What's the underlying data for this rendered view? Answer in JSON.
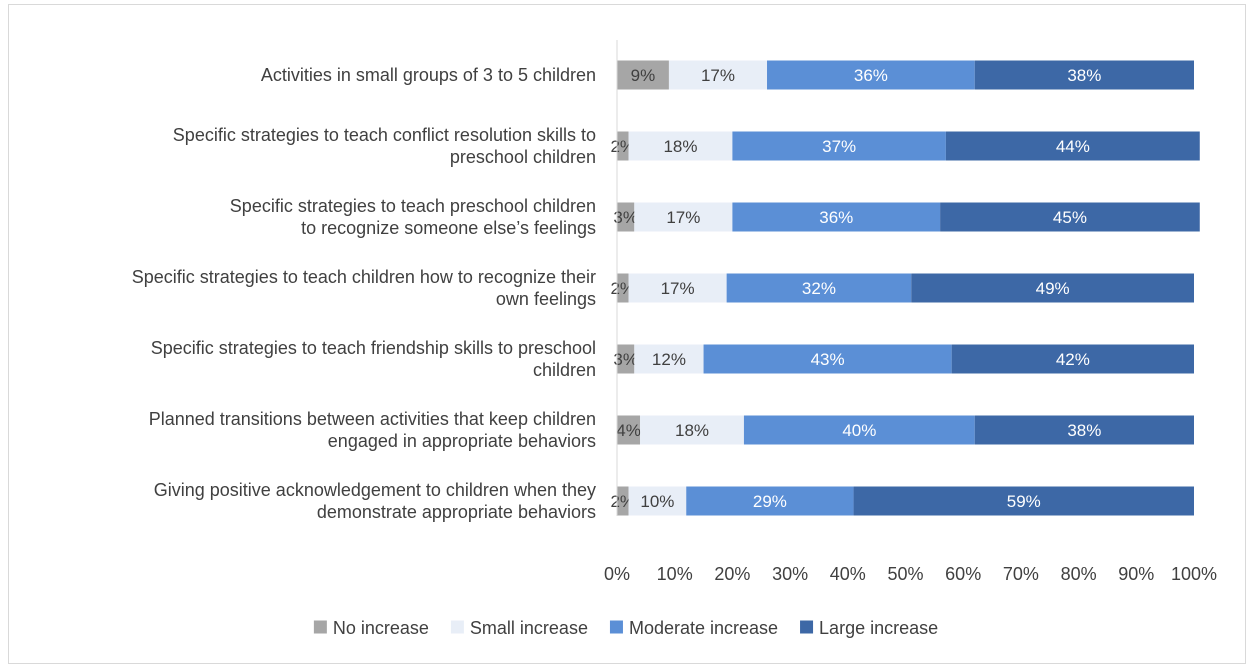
{
  "chart_data": {
    "type": "bar",
    "orientation": "horizontal",
    "stacked": "percent",
    "title": "",
    "xlabel": "",
    "ylabel": "",
    "xlim": [
      0,
      100
    ],
    "x_ticks": [
      "0%",
      "10%",
      "20%",
      "30%",
      "40%",
      "50%",
      "60%",
      "70%",
      "80%",
      "90%",
      "100%"
    ],
    "grid": false,
    "legend_position": "bottom",
    "categories": [
      [
        "Activities in small groups of 3 to 5 children"
      ],
      [
        "Specific strategies to teach conflict resolution skills to",
        "preschool children"
      ],
      [
        "Specific strategies to teach preschool children",
        "to recognize someone else’s feelings"
      ],
      [
        "Specific strategies to teach children how to recognize their",
        "own feelings"
      ],
      [
        "Specific strategies to teach friendship skills to preschool",
        "children"
      ],
      [
        "Planned transitions between activities that keep children",
        "engaged in appropriate behaviors"
      ],
      [
        "Giving positive acknowledgement to children when they",
        "demonstrate appropriate behaviors"
      ]
    ],
    "series": [
      {
        "name": "No increase",
        "color": "#a6a6a6",
        "label_color": "#404040",
        "values": [
          9,
          2,
          3,
          2,
          3,
          4,
          2
        ],
        "labels": [
          "9%",
          "2%",
          "3%",
          "2%",
          "3%",
          "4%",
          "2%"
        ]
      },
      {
        "name": "Small increase",
        "color": "#e8eef7",
        "label_color": "#404040",
        "values": [
          17,
          18,
          17,
          17,
          12,
          18,
          10
        ],
        "labels": [
          "17%",
          "18%",
          "17%",
          "17%",
          "12%",
          "18%",
          "10%"
        ]
      },
      {
        "name": "Moderate increase",
        "color": "#5b8fd6",
        "label_color": "#ffffff",
        "values": [
          36,
          37,
          36,
          32,
          43,
          40,
          29
        ],
        "labels": [
          "36%",
          "37%",
          "36%",
          "32%",
          "43%",
          "40%",
          "29%"
        ]
      },
      {
        "name": "Large increase",
        "color": "#3d68a6",
        "label_color": "#ffffff",
        "values": [
          38,
          44,
          45,
          49,
          42,
          38,
          59
        ],
        "labels": [
          "38%",
          "44%",
          "45%",
          "49%",
          "42%",
          "38%",
          "59%"
        ]
      }
    ]
  }
}
